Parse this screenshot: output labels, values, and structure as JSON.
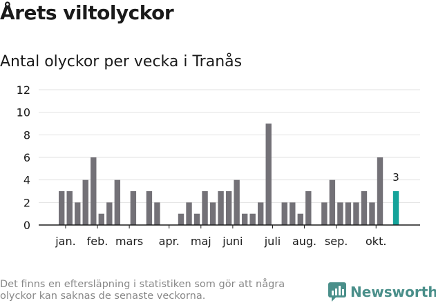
{
  "header": {
    "title": "Årets viltolyckor",
    "subtitle": "Antal olyckor per vecka i Tranås"
  },
  "chart_data": {
    "type": "bar",
    "title": "Antal olyckor per vecka i Tranås",
    "xlabel": "",
    "ylabel": "",
    "ylim": [
      0,
      12
    ],
    "yticks": [
      0,
      2,
      4,
      6,
      8,
      10,
      12
    ],
    "gridlines": true,
    "weeks": [
      1,
      2,
      3,
      4,
      5,
      6,
      7,
      8,
      9,
      10,
      11,
      12,
      13,
      14,
      15,
      16,
      17,
      18,
      19,
      20,
      21,
      22,
      23,
      24,
      25,
      26,
      27,
      28,
      29,
      30,
      31,
      32,
      33,
      34,
      35,
      36,
      37,
      38,
      39,
      40,
      41,
      42,
      43,
      44
    ],
    "values": [
      3,
      3,
      2,
      4,
      6,
      1,
      2,
      4,
      0,
      3,
      0,
      3,
      2,
      0,
      0,
      1,
      2,
      1,
      3,
      2,
      3,
      3,
      4,
      1,
      1,
      2,
      9,
      0,
      2,
      2,
      1,
      3,
      0,
      2,
      4,
      2,
      2,
      2,
      3,
      2,
      6,
      0,
      3,
      null
    ],
    "highlight_index": 42,
    "highlight_label": "3",
    "month_labels": [
      {
        "label": "jan.",
        "week": 1.5
      },
      {
        "label": "feb.",
        "week": 5.5
      },
      {
        "label": "mars",
        "week": 9.5
      },
      {
        "label": "apr.",
        "week": 14.5
      },
      {
        "label": "maj",
        "week": 18.5
      },
      {
        "label": "juni",
        "week": 22.5
      },
      {
        "label": "juli",
        "week": 27.5
      },
      {
        "label": "aug.",
        "week": 31.5
      },
      {
        "label": "sep.",
        "week": 35.5
      },
      {
        "label": "okt.",
        "week": 40.5
      }
    ],
    "colors": {
      "bar": "#737177",
      "highlight": "#14a39a",
      "grid": "#e2e2e2",
      "axis": "#1a1a1a"
    }
  },
  "footer": {
    "note": "Det finns en eftersläpning i statistiken som gör att några olyckor kan saknas de senaste veckorna.",
    "brand": "Newsworthy",
    "brand_color": "#4a8f8a",
    "brand_icon": "newsworthy-logo-icon"
  }
}
